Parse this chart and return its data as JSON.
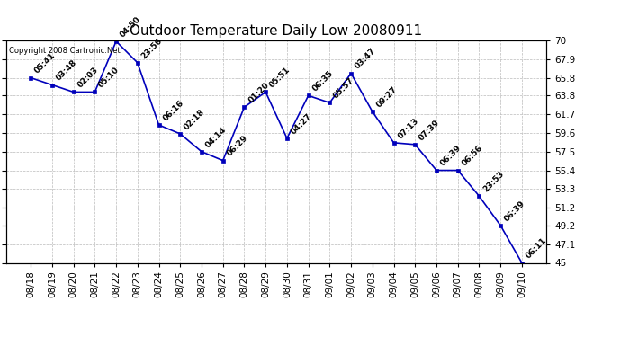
{
  "title": "Outdoor Temperature Daily Low 20080911",
  "copyright": "Copyright 2008 Cartronic.Net",
  "dates": [
    "08/18",
    "08/19",
    "08/20",
    "08/21",
    "08/22",
    "08/23",
    "08/24",
    "08/25",
    "08/26",
    "08/27",
    "08/28",
    "08/29",
    "08/30",
    "08/31",
    "09/01",
    "09/02",
    "09/03",
    "09/04",
    "09/05",
    "09/06",
    "09/07",
    "09/08",
    "09/09",
    "09/10"
  ],
  "temps": [
    65.8,
    65.0,
    64.2,
    64.2,
    69.9,
    67.5,
    60.5,
    59.5,
    57.5,
    56.5,
    62.5,
    64.2,
    59.0,
    63.8,
    63.0,
    66.3,
    62.0,
    58.5,
    58.3,
    55.4,
    55.4,
    52.5,
    49.2,
    45.0
  ],
  "labels": [
    "05:41",
    "03:48",
    "02:03",
    "05:10",
    "04:50",
    "23:56",
    "06:16",
    "02:18",
    "04:14",
    "06:29",
    "01:20",
    "05:51",
    "04:27",
    "06:35",
    "05:57",
    "03:47",
    "09:27",
    "07:13",
    "07:39",
    "06:39",
    "06:56",
    "23:53",
    "06:39",
    "06:11"
  ],
  "ylim": [
    45.0,
    70.0
  ],
  "yticks": [
    45.0,
    47.1,
    49.2,
    51.2,
    53.3,
    55.4,
    57.5,
    59.6,
    61.7,
    63.8,
    65.8,
    67.9,
    70.0
  ],
  "line_color": "#0000bb",
  "marker_color": "#0000bb",
  "bg_color": "#ffffff",
  "grid_color": "#bbbbbb",
  "title_fontsize": 11,
  "label_fontsize": 6.5,
  "tick_fontsize": 7.5,
  "copyright_fontsize": 6
}
